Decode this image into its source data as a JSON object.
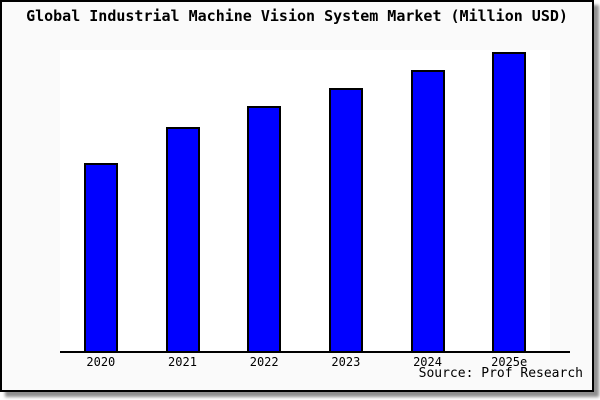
{
  "title": "Global Industrial Machine Vision System Market (Million USD)",
  "source": "Source: Prof Research",
  "colors": {
    "background": "#fafafa",
    "plot_background": "#ffffff",
    "bar_fill": "#0000ff",
    "bar_border": "#000000",
    "axis": "#000000"
  },
  "chart_data": {
    "type": "bar",
    "title": "Global Industrial Machine Vision System Market (Million USD)",
    "categories": [
      "2020",
      "2021",
      "2022",
      "2023",
      "2024",
      "2025e"
    ],
    "values": [
      63,
      75,
      82,
      88,
      94,
      100
    ],
    "values_unit": "relative height, % of tallest bar (y-axis unlabeled)",
    "xlabel": "",
    "ylabel": "",
    "ylim": [
      0,
      100
    ],
    "grid": false,
    "legend": null,
    "annotations": [
      "Source: Prof Research"
    ]
  }
}
